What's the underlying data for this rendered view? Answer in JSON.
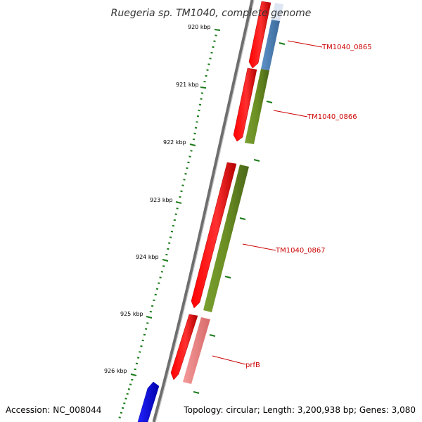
{
  "title": "Ruegeria sp. TM1040, complete genome",
  "footer": {
    "accession": "Accession: NC_008044",
    "summary": "Topology: circular; Length: 3,200,938 bp; Genes: 3,080"
  },
  "ticks": [
    "920 kbp",
    "921 kbp",
    "922 kbp",
    "923 kbp",
    "924 kbp",
    "925 kbp",
    "926 kbp"
  ],
  "genes": [
    {
      "name": "TM1040_0865",
      "color": "#cc0000"
    },
    {
      "name": "TM1040_0866",
      "color": "#cc0000"
    },
    {
      "name": "TM1040_0867",
      "color": "#cc0000"
    },
    {
      "name": "prfB",
      "color": "#cc0000"
    }
  ],
  "colors": {
    "forward_cds": "#ff0000",
    "reverse_cds": "#0000ff",
    "cog_blue": "#4a7fb5",
    "cog_green": "#6b8e23",
    "cog_pink": "#f08080",
    "cog_pale": "#dde6f2",
    "backbone": "#808080",
    "tick": "#1a7a1a"
  }
}
